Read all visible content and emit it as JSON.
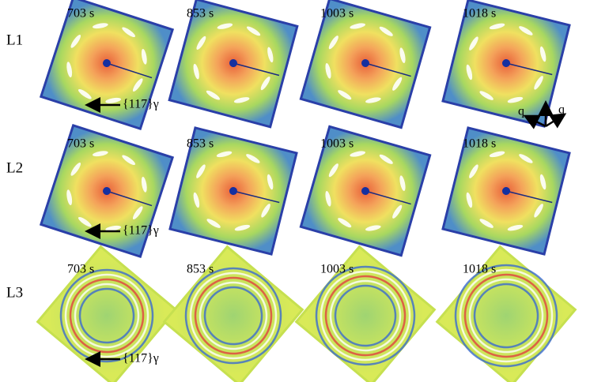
{
  "rows": [
    {
      "label": "L1",
      "panels": [
        {
          "time": "703 s"
        },
        {
          "time": "853 s"
        },
        {
          "time": "1003 s"
        },
        {
          "time": "1018 s"
        }
      ],
      "annotation": "{117}γ"
    },
    {
      "label": "L2",
      "panels": [
        {
          "time": "703 s"
        },
        {
          "time": "853 s"
        },
        {
          "time": "1003 s"
        },
        {
          "time": "1018 s"
        }
      ],
      "annotation": "{117}γ"
    },
    {
      "label": "L3",
      "panels": [
        {
          "time": "703 s"
        },
        {
          "time": "853 s"
        },
        {
          "time": "1003 s"
        },
        {
          "time": "1018 s"
        }
      ],
      "annotation": "{117}γ"
    }
  ],
  "axes": {
    "left": "q",
    "right": "q"
  }
}
